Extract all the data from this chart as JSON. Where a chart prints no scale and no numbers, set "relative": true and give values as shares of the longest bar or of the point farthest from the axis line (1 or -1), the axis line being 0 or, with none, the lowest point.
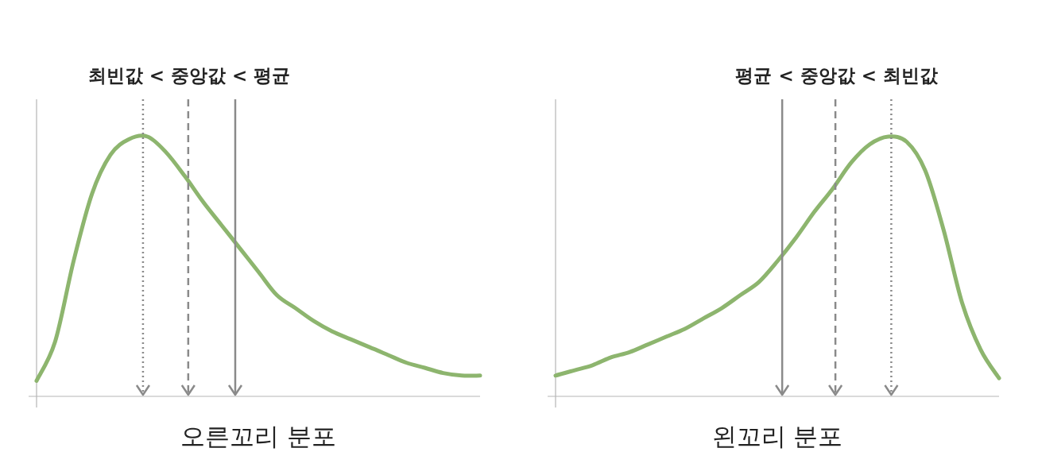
{
  "chart_data": [
    {
      "type": "line",
      "relative": true,
      "title": "최빈값 < 중앙값 < 평균",
      "xlabel": "오른꼬리 분포",
      "categories": [
        null,
        null,
        null,
        null,
        null,
        null,
        null,
        null,
        null,
        null,
        null,
        null,
        null,
        null,
        null,
        null,
        null,
        null,
        null,
        null,
        null,
        null,
        null,
        null,
        null
      ],
      "series": [
        {
          "color": "#8db56e",
          "values": [
            0.06,
            0.21,
            0.52,
            0.78,
            0.93,
            0.99,
            1.0,
            0.94,
            0.85,
            0.75,
            0.66,
            0.57,
            0.48,
            0.39,
            0.34,
            0.29,
            0.25,
            0.22,
            0.19,
            0.16,
            0.13,
            0.11,
            0.09,
            0.08,
            0.08
          ]
        }
      ]
    },
    {
      "type": "line",
      "relative": true,
      "title": "평균 < 중앙값 < 최빈값",
      "xlabel": "왼꼬리 분포",
      "categories": [
        null,
        null,
        null,
        null,
        null,
        null,
        null,
        null,
        null,
        null,
        null,
        null,
        null,
        null,
        null,
        null,
        null,
        null,
        null,
        null,
        null,
        null,
        null,
        null,
        null
      ],
      "series": [
        {
          "color": "#8db56e",
          "values": [
            0.08,
            0.1,
            0.12,
            0.15,
            0.17,
            0.2,
            0.23,
            0.26,
            0.3,
            0.34,
            0.39,
            0.44,
            0.52,
            0.61,
            0.71,
            0.8,
            0.9,
            0.97,
            1.0,
            0.98,
            0.87,
            0.64,
            0.36,
            0.18,
            0.07
          ]
        }
      ]
    }
  ]
}
